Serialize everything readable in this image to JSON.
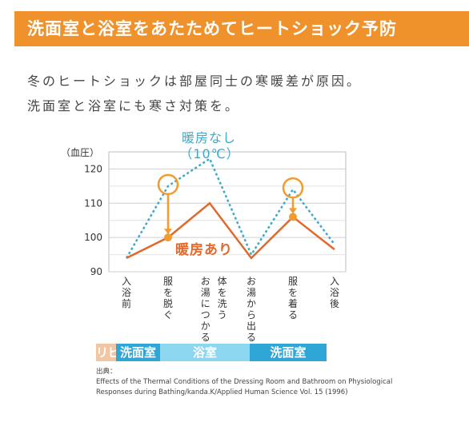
{
  "header": {
    "title": "洗面室と浴室をあたためてヒートショック予防"
  },
  "lead": {
    "line1": "冬のヒートショックは部屋同士の寒暖差が原因。",
    "line2": "洗面室と浴室にも寒さ対策を。"
  },
  "colors": {
    "banner": "#f0922c",
    "unheated": "#3ea9c9",
    "heated": "#e2682c",
    "marker": "#f29b2e",
    "living": "#f2c6a2",
    "washroom": "#2ea7d6",
    "bathroom": "#8dd6ef"
  },
  "chart_data": {
    "type": "line",
    "ylabel": "（血圧）",
    "ylim": [
      90,
      125
    ],
    "yticks": [
      90,
      100,
      110,
      120
    ],
    "grid": true,
    "categories": [
      "入浴前",
      "服を脱ぐ",
      "お湯につかる体を洗う",
      "お湯から出る",
      "服を着る",
      "入浴後"
    ],
    "x_tick_labels": [
      "入浴前",
      "服を脱ぐ",
      "お湯につかる",
      "体を洗う",
      "お湯から出る",
      "服を着る",
      "入浴後"
    ],
    "x": [
      0,
      1,
      2,
      2.3,
      3,
      4,
      5
    ],
    "series": [
      {
        "name": "暖房なし（10℃）",
        "label_lines": [
          "暖房なし",
          "（10℃）"
        ],
        "style": "dotted",
        "values": [
          94,
          115,
          123,
          95,
          114,
          98
        ]
      },
      {
        "name": "暖房あり",
        "style": "solid",
        "values": [
          94,
          100,
          110,
          94,
          106,
          96.5
        ]
      }
    ],
    "annotations": [
      {
        "type": "circle-arrow",
        "x_index": 1,
        "from": 115,
        "to": 100
      },
      {
        "type": "circle-arrow",
        "x_index": 4,
        "from": 114,
        "to": 106
      }
    ]
  },
  "rooms": [
    {
      "label": "リビング",
      "color_key": "living",
      "span": [
        0,
        0.5
      ]
    },
    {
      "label": "洗面室",
      "color_key": "washroom",
      "span": [
        0.5,
        1.55
      ]
    },
    {
      "label": "浴室",
      "color_key": "bathroom",
      "span": [
        1.55,
        3.7
      ]
    },
    {
      "label": "洗面室",
      "color_key": "washroom",
      "span": [
        3.7,
        5.55
      ]
    }
  ],
  "source": {
    "label": "出典：",
    "line1": "Effects of the Thermal Conditions of the Dressing Room and Bathroom on Physiological",
    "line2": "Responses during Bathing/kanda.K/Applied Human Science Vol. 15 (1996)"
  }
}
